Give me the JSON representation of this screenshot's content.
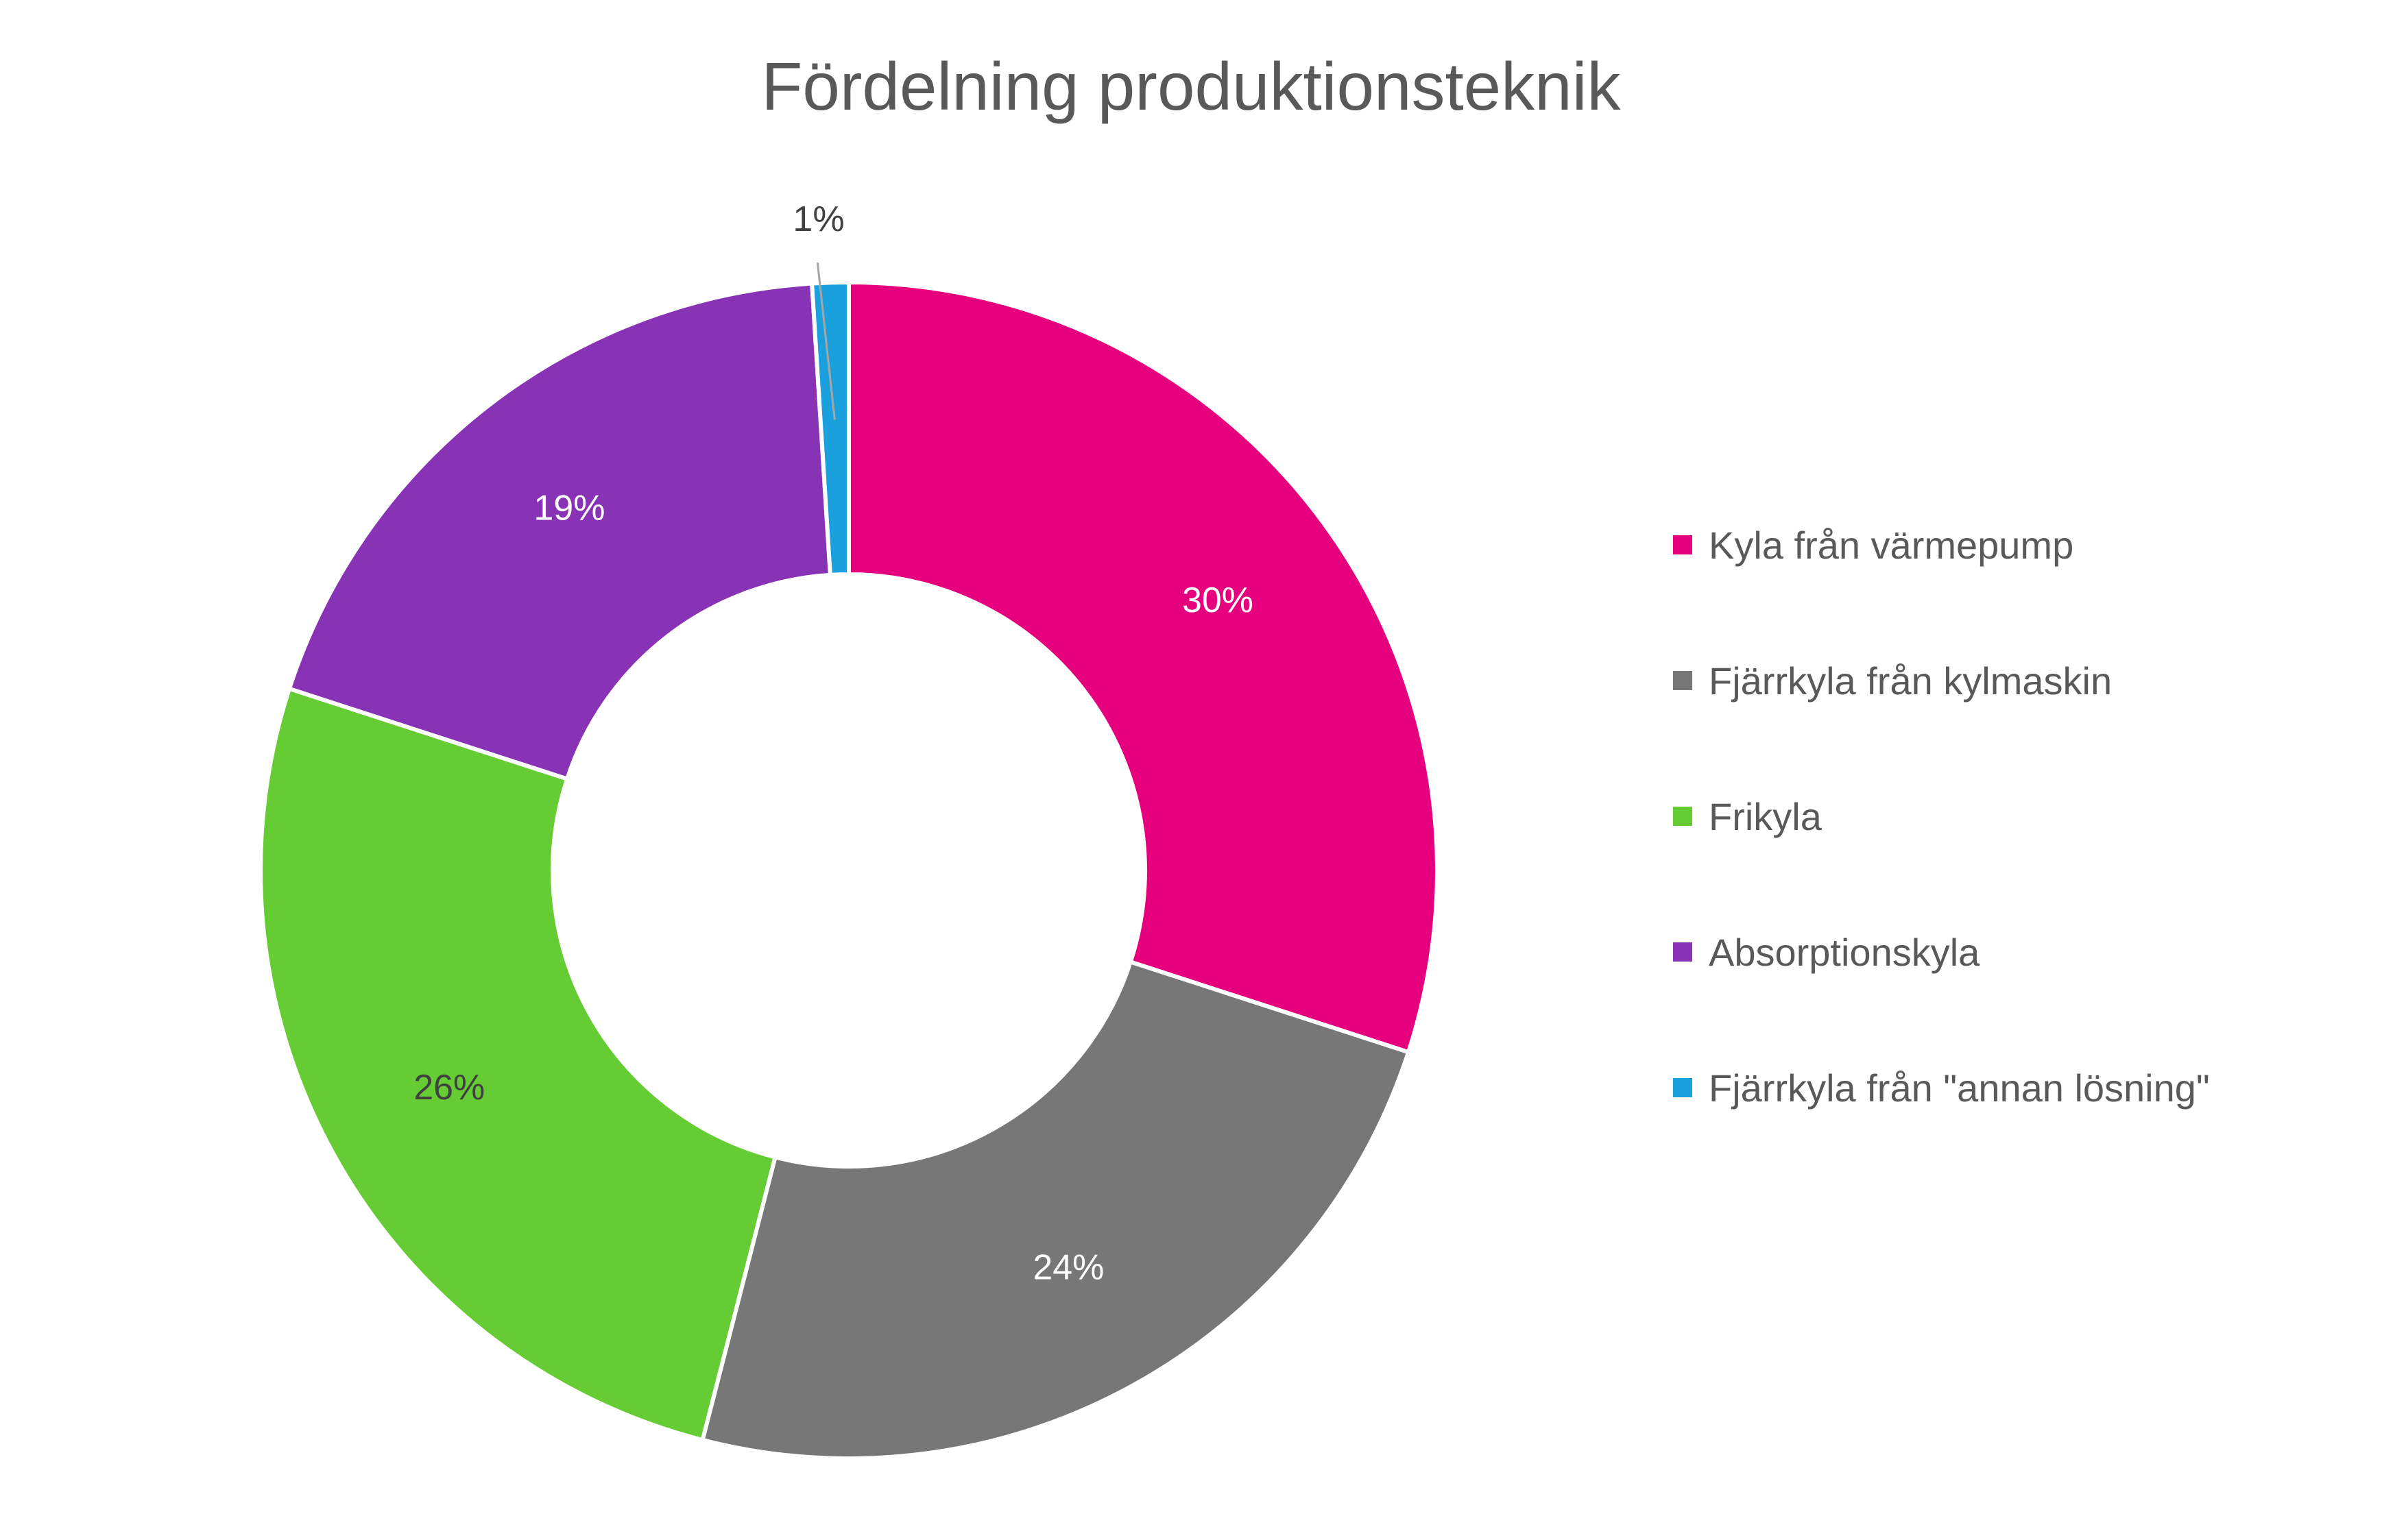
{
  "chart_data": {
    "type": "pie",
    "title": "Fördelning produktionsteknik",
    "donut": true,
    "legend_position": "right",
    "slices": [
      {
        "label": "Kyla från värmepump",
        "value": 30,
        "value_label": "30%",
        "color": "#E6007E",
        "label_color": "#FFFFFF"
      },
      {
        "label": "Fjärrkyla från kylmaskin",
        "value": 24,
        "value_label": "24%",
        "color": "#777777",
        "label_color": "#FFFFFF"
      },
      {
        "label": "Frikyla",
        "value": 26,
        "value_label": "26%",
        "color": "#66CC33",
        "label_color": "#404040"
      },
      {
        "label": "Absorptionskyla",
        "value": 19,
        "value_label": "19%",
        "color": "#8833B5",
        "label_color": "#FFFFFF"
      },
      {
        "label": "Fjärrkyla från \"annan lösning\"",
        "value": 1,
        "value_label": "1%",
        "color": "#1AA0DC",
        "label_color": "#404040"
      }
    ]
  }
}
